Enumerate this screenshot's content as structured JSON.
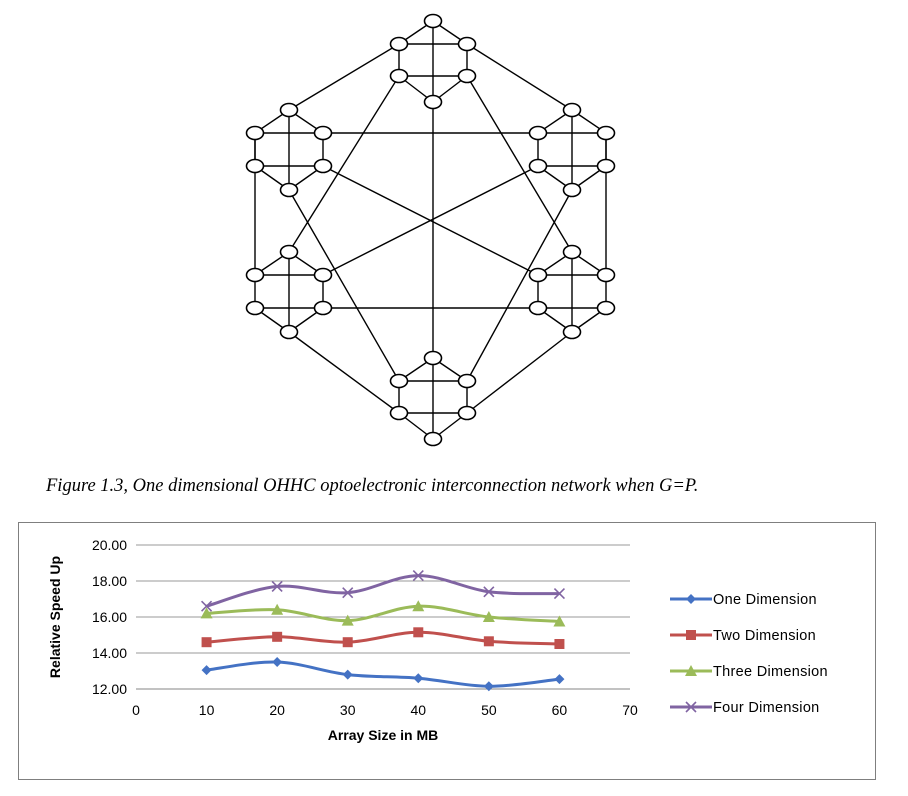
{
  "figure": {
    "caption": "Figure 1.3, One dimensional OHHC optoelectronic interconnection network when G=P."
  },
  "chart_data": {
    "type": "line",
    "title": "",
    "xlabel": "Array Size in MB",
    "ylabel": "Relative Speed Up",
    "xlim": [
      0,
      70
    ],
    "ylim": [
      12,
      20
    ],
    "x_ticks": [
      "0",
      "10",
      "20",
      "30",
      "40",
      "50",
      "60",
      "70"
    ],
    "y_ticks": [
      "12.00",
      "14.00",
      "16.00",
      "18.00",
      "20.00"
    ],
    "x": [
      10,
      20,
      30,
      40,
      50,
      60
    ],
    "grid": "horizontal",
    "legend_position": "right",
    "series": [
      {
        "name": "One Dimension",
        "values": [
          13.05,
          13.5,
          12.8,
          12.6,
          12.15,
          12.55
        ],
        "color": "#4472c4",
        "marker": "diamond"
      },
      {
        "name": "Two Dimension",
        "values": [
          14.6,
          14.9,
          14.6,
          15.15,
          14.65,
          14.5
        ],
        "color": "#c0504d",
        "marker": "square"
      },
      {
        "name": "Three Dimension",
        "values": [
          16.2,
          16.4,
          15.8,
          16.6,
          16.0,
          15.75
        ],
        "color": "#9bbb59",
        "marker": "triangle"
      },
      {
        "name": "Four Dimension",
        "values": [
          16.6,
          17.7,
          17.35,
          18.3,
          17.4,
          17.3
        ],
        "color": "#8064a2",
        "marker": "x"
      }
    ]
  }
}
